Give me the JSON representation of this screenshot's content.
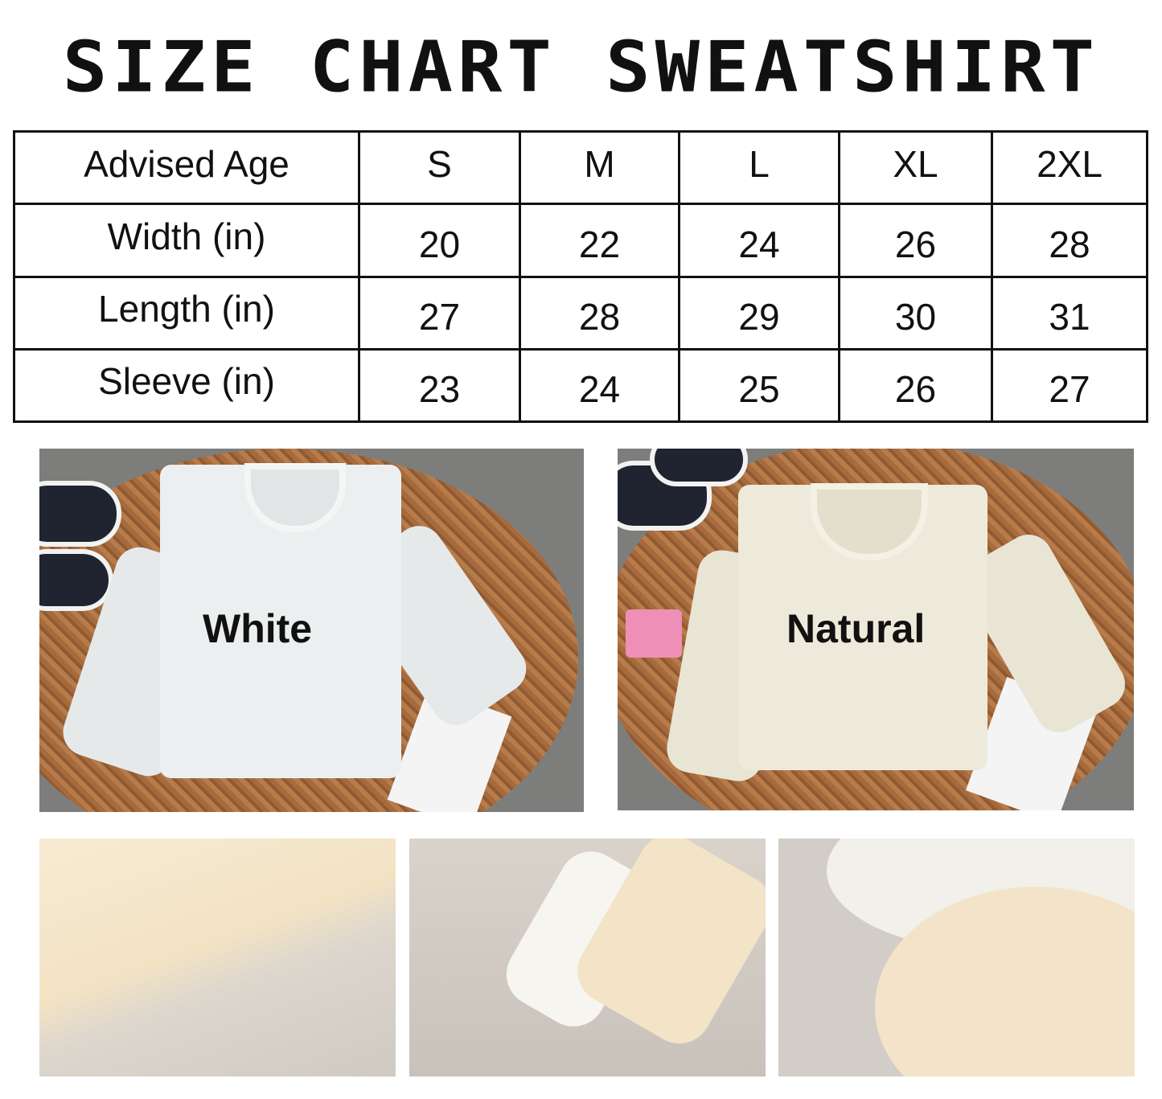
{
  "title": "SIZE CHART SWEATSHIRT",
  "size_table": {
    "header": [
      "Advised Age",
      "S",
      "M",
      "L",
      "XL",
      "2XL"
    ],
    "rows": [
      {
        "label": "Width (in)",
        "values": [
          "20",
          "22",
          "24",
          "26",
          "28"
        ]
      },
      {
        "label": "Length (in)",
        "values": [
          "27",
          "28",
          "29",
          "30",
          "31"
        ]
      },
      {
        "label": "Sleeve (in)",
        "values": [
          "23",
          "24",
          "25",
          "26",
          "27"
        ]
      }
    ]
  },
  "photos": {
    "white": {
      "label": "White",
      "shirt_color": "#eceff0"
    },
    "natural": {
      "label": "Natural",
      "shirt_color": "#eeeadb"
    }
  }
}
